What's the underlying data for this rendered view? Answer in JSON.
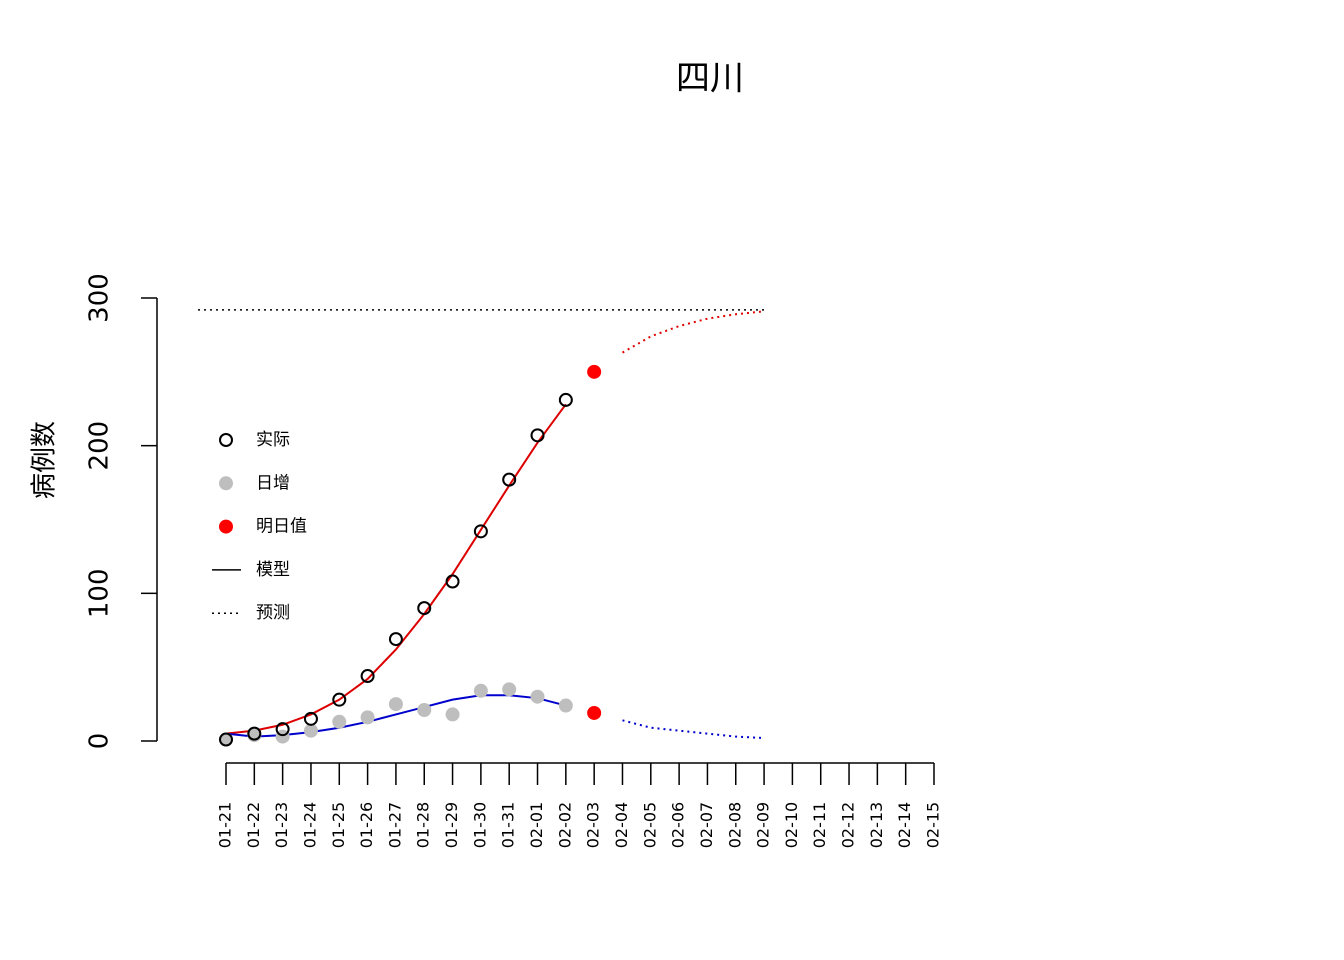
{
  "chart_data": {
    "type": "line",
    "title": "四川",
    "y_label": "病例数",
    "categories": [
      "01-21",
      "01-22",
      "01-23",
      "01-24",
      "01-25",
      "01-26",
      "01-27",
      "01-28",
      "01-29",
      "01-30",
      "01-31",
      "02-01",
      "02-02",
      "02-03",
      "02-04",
      "02-05",
      "02-06",
      "02-07",
      "02-08",
      "02-09",
      "02-10",
      "02-11",
      "02-12",
      "02-13",
      "02-14",
      "02-15"
    ],
    "ylim": [
      0,
      300
    ],
    "yticks": [
      0,
      100,
      200,
      300
    ],
    "capacity": 292,
    "series": [
      {
        "name": "实际",
        "role": "points",
        "marker": "open",
        "color": "#000000",
        "values": [
          1,
          5,
          8,
          15,
          28,
          44,
          69,
          90,
          108,
          142,
          177,
          207,
          231,
          null,
          null,
          null,
          null,
          null,
          null,
          null,
          null,
          null,
          null,
          null,
          null,
          null
        ]
      },
      {
        "name": "日增",
        "role": "points",
        "marker": "filled",
        "color": "#bebebe",
        "values": [
          1,
          4,
          3,
          7,
          13,
          16,
          25,
          21,
          18,
          34,
          35,
          30,
          24,
          null,
          null,
          null,
          null,
          null,
          null,
          null,
          null,
          null,
          null,
          null,
          null,
          null
        ]
      },
      {
        "name": "明日值",
        "role": "points",
        "marker": "filled",
        "color": "#ff0000",
        "values": [
          null,
          null,
          null,
          null,
          null,
          null,
          null,
          null,
          null,
          null,
          null,
          null,
          null,
          250,
          null,
          null,
          null,
          null,
          null,
          null,
          null,
          null,
          null,
          null,
          null,
          null
        ]
      },
      {
        "role": "points",
        "marker": "filled",
        "color": "#ff0000",
        "values": [
          null,
          null,
          null,
          null,
          null,
          null,
          null,
          null,
          null,
          null,
          null,
          null,
          null,
          19,
          null,
          null,
          null,
          null,
          null,
          null,
          null,
          null,
          null,
          null,
          null,
          null
        ]
      },
      {
        "role": "line",
        "dash": false,
        "color": "#dd0000",
        "values": [
          5,
          7,
          11,
          18,
          28,
          42,
          62,
          86,
          113,
          143,
          173,
          202,
          228,
          null,
          null,
          null,
          null,
          null,
          null,
          null,
          null,
          null,
          null,
          null,
          null,
          null
        ]
      },
      {
        "role": "line",
        "dash": false,
        "color": "#0000cd",
        "values": [
          5,
          3,
          4,
          6,
          9,
          13,
          18,
          23,
          28,
          31,
          31,
          29,
          24,
          null,
          null,
          null,
          null,
          null,
          null,
          null,
          null,
          null,
          null,
          null,
          null,
          null
        ]
      },
      {
        "role": "line",
        "dash": true,
        "color": "#dd0000",
        "values": [
          null,
          null,
          null,
          null,
          null,
          null,
          null,
          null,
          null,
          null,
          null,
          null,
          null,
          null,
          263,
          274,
          281,
          286,
          289,
          291,
          null,
          null,
          null,
          null,
          null,
          null
        ]
      },
      {
        "role": "line",
        "dash": true,
        "color": "#0000cd",
        "values": [
          null,
          null,
          null,
          null,
          null,
          null,
          null,
          null,
          null,
          null,
          null,
          null,
          null,
          null,
          14,
          9,
          7,
          5,
          3,
          2,
          null,
          null,
          null,
          null,
          null,
          null
        ]
      }
    ],
    "legend": [
      {
        "label": "实际",
        "symbol": "open"
      },
      {
        "label": "日增",
        "symbol": "filled",
        "color": "#bebebe"
      },
      {
        "label": "明日值",
        "symbol": "filled",
        "color": "#ff0000"
      },
      {
        "label": "模型",
        "symbol": "line"
      },
      {
        "label": "预测",
        "symbol": "dash"
      }
    ]
  }
}
